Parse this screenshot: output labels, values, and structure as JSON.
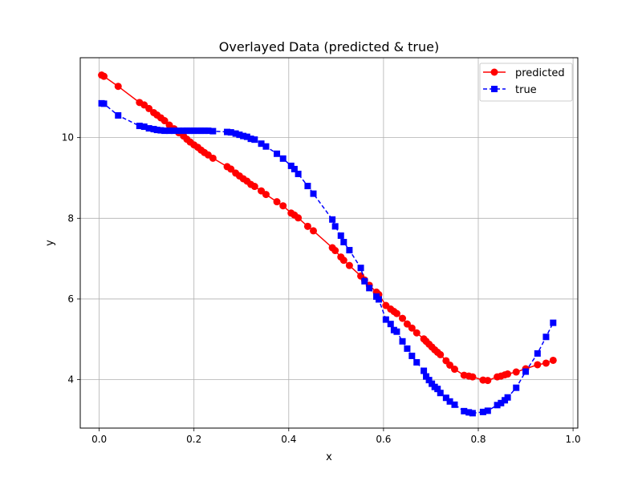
{
  "chart_data": {
    "type": "line",
    "title": "Overlayed Data (predicted & true)",
    "xlabel": "x",
    "ylabel": "y",
    "xlim": [
      -0.04,
      1.01
    ],
    "ylim": [
      2.8,
      11.98
    ],
    "xticks": [
      0.0,
      0.2,
      0.4,
      0.6,
      0.8,
      1.0
    ],
    "xtick_labels": [
      "0.0",
      "0.2",
      "0.4",
      "0.6",
      "0.8",
      "1.0"
    ],
    "yticks": [
      4,
      6,
      8,
      10
    ],
    "ytick_labels": [
      "4",
      "6",
      "8",
      "10"
    ],
    "grid": true,
    "legend_position": "top-right",
    "series": [
      {
        "name": "predicted",
        "color": "#ff0000",
        "linestyle": "solid",
        "marker": "circle",
        "x": [
          0.005,
          0.01,
          0.04,
          0.085,
          0.095,
          0.105,
          0.115,
          0.122,
          0.13,
          0.138,
          0.148,
          0.158,
          0.168,
          0.178,
          0.185,
          0.192,
          0.2,
          0.208,
          0.215,
          0.222,
          0.23,
          0.24,
          0.27,
          0.278,
          0.288,
          0.296,
          0.304,
          0.312,
          0.32,
          0.328,
          0.342,
          0.352,
          0.375,
          0.388,
          0.405,
          0.412,
          0.42,
          0.44,
          0.452,
          0.492,
          0.498,
          0.51,
          0.516,
          0.528,
          0.552,
          0.56,
          0.57,
          0.585,
          0.59,
          0.605,
          0.615,
          0.622,
          0.628,
          0.64,
          0.65,
          0.66,
          0.67,
          0.685,
          0.69,
          0.696,
          0.702,
          0.708,
          0.714,
          0.72,
          0.732,
          0.74,
          0.75,
          0.77,
          0.78,
          0.788,
          0.81,
          0.82,
          0.84,
          0.848,
          0.856,
          0.862,
          0.88,
          0.9,
          0.925,
          0.943,
          0.958
        ],
        "y": [
          11.55,
          11.52,
          11.27,
          10.87,
          10.81,
          10.72,
          10.62,
          10.56,
          10.49,
          10.42,
          10.31,
          10.22,
          10.12,
          10.04,
          9.96,
          9.89,
          9.82,
          9.76,
          9.69,
          9.63,
          9.57,
          9.49,
          9.28,
          9.22,
          9.12,
          9.05,
          8.98,
          8.92,
          8.84,
          8.79,
          8.68,
          8.59,
          8.41,
          8.31,
          8.13,
          8.08,
          8.01,
          7.8,
          7.69,
          7.27,
          7.2,
          7.04,
          6.96,
          6.83,
          6.57,
          6.47,
          6.34,
          6.17,
          6.11,
          5.84,
          5.75,
          5.69,
          5.64,
          5.52,
          5.38,
          5.28,
          5.16,
          5.01,
          4.95,
          4.88,
          4.81,
          4.74,
          4.68,
          4.62,
          4.47,
          4.36,
          4.26,
          4.11,
          4.09,
          4.07,
          3.99,
          3.98,
          4.07,
          4.09,
          4.12,
          4.14,
          4.19,
          4.27,
          4.37,
          4.41,
          4.48
        ]
      },
      {
        "name": "true",
        "color": "#0000ff",
        "linestyle": "dashed",
        "marker": "square",
        "x": [
          0.005,
          0.01,
          0.04,
          0.085,
          0.095,
          0.105,
          0.115,
          0.122,
          0.13,
          0.138,
          0.148,
          0.158,
          0.168,
          0.178,
          0.185,
          0.192,
          0.2,
          0.208,
          0.215,
          0.222,
          0.23,
          0.24,
          0.27,
          0.278,
          0.288,
          0.296,
          0.304,
          0.312,
          0.32,
          0.328,
          0.342,
          0.352,
          0.375,
          0.388,
          0.405,
          0.412,
          0.42,
          0.44,
          0.452,
          0.492,
          0.498,
          0.51,
          0.516,
          0.528,
          0.552,
          0.56,
          0.57,
          0.585,
          0.59,
          0.605,
          0.615,
          0.622,
          0.628,
          0.64,
          0.65,
          0.66,
          0.67,
          0.685,
          0.69,
          0.696,
          0.702,
          0.708,
          0.714,
          0.72,
          0.732,
          0.74,
          0.75,
          0.77,
          0.78,
          0.788,
          0.81,
          0.82,
          0.84,
          0.848,
          0.856,
          0.862,
          0.88,
          0.9,
          0.925,
          0.943,
          0.958
        ],
        "y": [
          10.85,
          10.84,
          10.55,
          10.29,
          10.27,
          10.23,
          10.21,
          10.19,
          10.18,
          10.17,
          10.17,
          10.17,
          10.17,
          10.17,
          10.17,
          10.17,
          10.17,
          10.17,
          10.17,
          10.17,
          10.17,
          10.16,
          10.14,
          10.13,
          10.1,
          10.07,
          10.04,
          10.02,
          9.97,
          9.95,
          9.85,
          9.78,
          9.6,
          9.48,
          9.3,
          9.22,
          9.1,
          8.8,
          8.61,
          7.97,
          7.8,
          7.57,
          7.41,
          7.21,
          6.77,
          6.44,
          6.27,
          6.06,
          5.99,
          5.49,
          5.38,
          5.23,
          5.19,
          4.95,
          4.77,
          4.59,
          4.43,
          4.22,
          4.08,
          3.99,
          3.9,
          3.82,
          3.77,
          3.67,
          3.55,
          3.46,
          3.38,
          3.22,
          3.19,
          3.17,
          3.2,
          3.23,
          3.37,
          3.42,
          3.49,
          3.56,
          3.8,
          4.2,
          4.65,
          5.06,
          5.41
        ]
      }
    ]
  }
}
